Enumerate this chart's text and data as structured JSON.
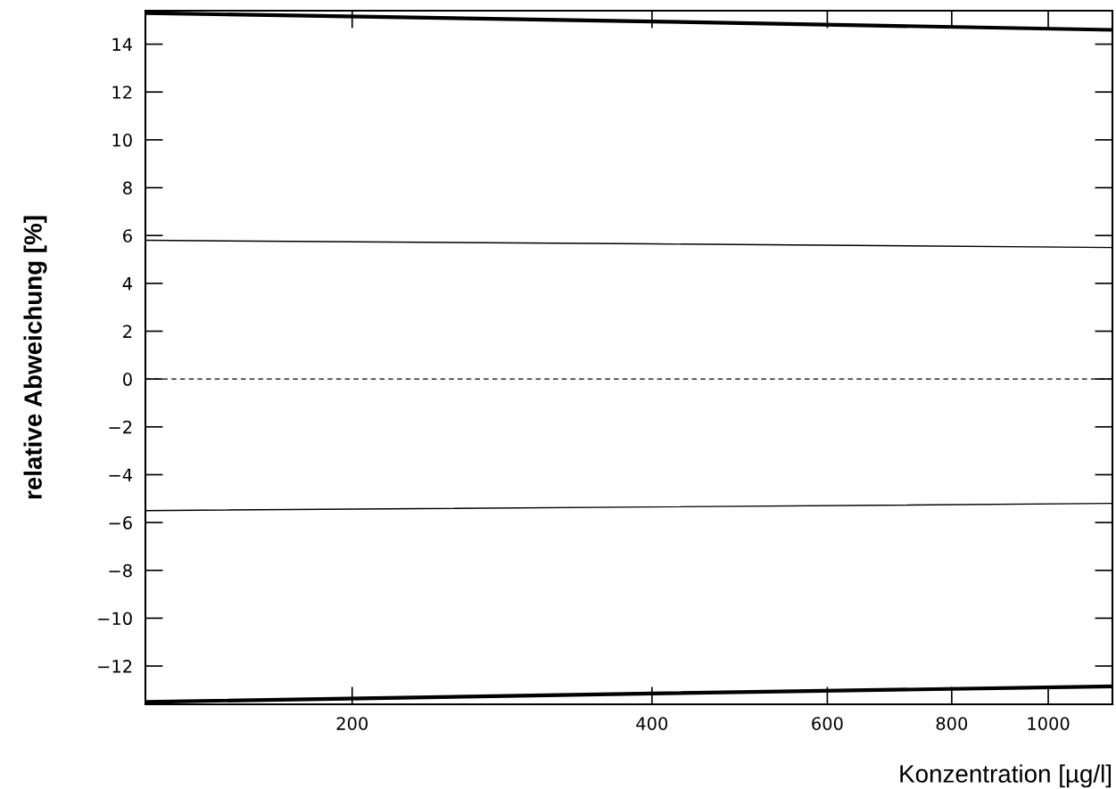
{
  "chart_data": {
    "type": "line",
    "xlabel": "Konzentration [µg/l]",
    "ylabel": "relative Abweichung [%]",
    "log": "x",
    "x": [
      124,
      400,
      1160
    ],
    "series": [
      {
        "color": "#000000",
        "values": [
          15.3,
          14.95,
          14.6
        ]
      },
      {
        "color": "#000000",
        "values": [
          5.8,
          5.65,
          5.5
        ]
      },
      {
        "color": "#000000",
        "values": [
          -5.5,
          -5.35,
          -5.2
        ]
      },
      {
        "color": "#000000",
        "values": [
          -13.5,
          -13.15,
          -12.85
        ]
      }
    ],
    "xlim": [
      124,
      1160
    ],
    "xticks": [
      200,
      400,
      600,
      800,
      1000
    ],
    "ylim": [
      -13.6,
      15.4
    ],
    "yticks": [
      {
        "value": -12,
        "label": "−12"
      },
      {
        "value": -10,
        "label": "−10"
      },
      {
        "value": -8,
        "label": "−8"
      },
      {
        "value": -6,
        "label": "−6"
      },
      {
        "value": -4,
        "label": "−4"
      },
      {
        "value": -2,
        "label": "−2"
      },
      0,
      2,
      4,
      6,
      8,
      10,
      12,
      14
    ],
    "ref_lines": [
      {
        "axis": "y",
        "value": 0,
        "color": "#000000",
        "line_style": "dashed"
      }
    ],
    "grid": false,
    "legend": false
  }
}
